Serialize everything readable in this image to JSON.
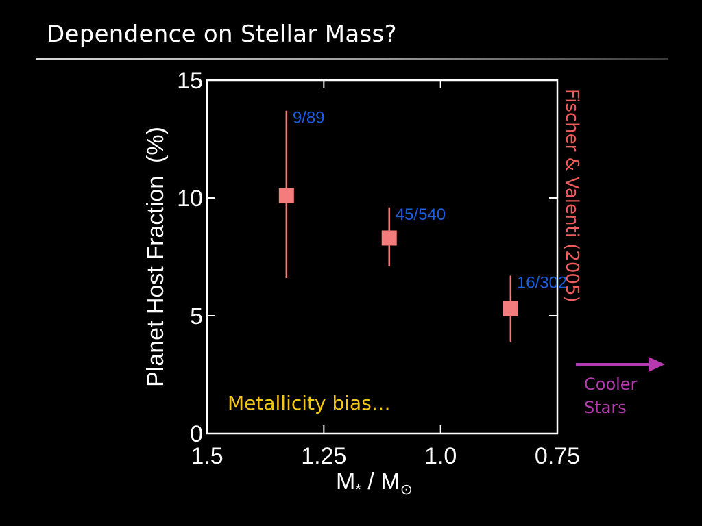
{
  "slide": {
    "title": "Dependence on Stellar Mass?"
  },
  "chart_data": {
    "type": "scatter",
    "title": "",
    "xlabel": "M* / M⊙",
    "ylabel": "Planet Host Fraction  (%)",
    "xlim": [
      1.5,
      0.75
    ],
    "xscale": "linear-reversed",
    "ylim": [
      0,
      15
    ],
    "x_ticks": [
      1.5,
      1.25,
      1.0,
      0.75
    ],
    "x_tick_labels": [
      "1.5",
      "1.25",
      "1.0",
      "0.75"
    ],
    "y_ticks": [
      0,
      5,
      10,
      15
    ],
    "y_tick_labels": [
      "0",
      "5",
      "10",
      "15"
    ],
    "grid": false,
    "series": [
      {
        "marker": "square",
        "color": "#f47c7c",
        "points": [
          {
            "x": 1.33,
            "y": 10.1,
            "y_err_low": 6.6,
            "y_err_high": 13.7,
            "label": "9/89"
          },
          {
            "x": 1.11,
            "y": 8.3,
            "y_err_low": 7.1,
            "y_err_high": 9.6,
            "label": "45/540"
          },
          {
            "x": 0.85,
            "y": 5.3,
            "y_err_low": 3.9,
            "y_err_high": 6.7,
            "label": "16/302"
          }
        ]
      }
    ],
    "label_color": "#1a5fe0",
    "citation": "Fischer & Valenti (2005)",
    "citation_color": "#f25c5c",
    "annotation": "Metallicity bias…",
    "annotation_color": "#f5c518"
  },
  "side_note": {
    "line1": "Cooler",
    "line2": "Stars",
    "color": "#b53ab0"
  }
}
